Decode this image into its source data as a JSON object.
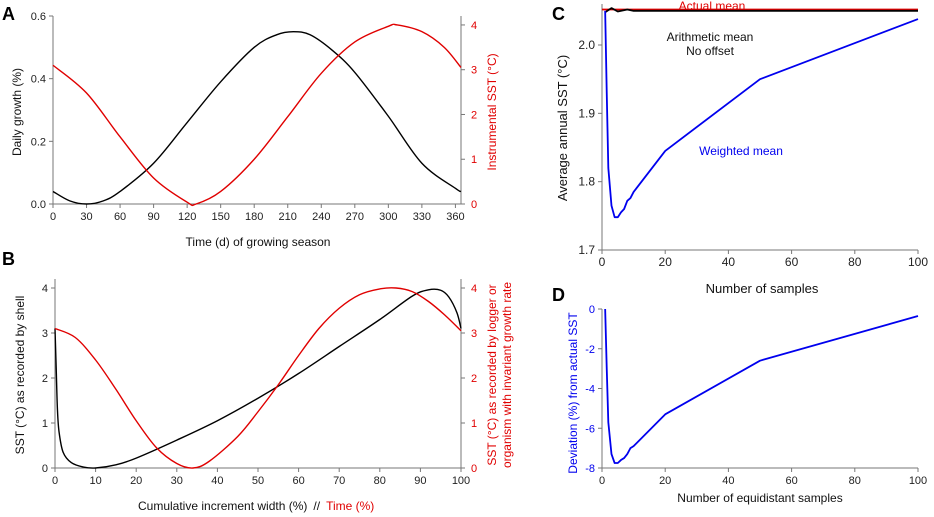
{
  "chart_data": [
    {
      "panel": "A",
      "type": "line",
      "xlabel": "Time (d) of growing season",
      "ylabel_left": "Daily growth (%)",
      "ylabel_right": "Instrumental SST (°C)",
      "xticks": [
        "0",
        "30",
        "60",
        "90",
        "120",
        "150",
        "180",
        "210",
        "240",
        "270",
        "300",
        "330",
        "360"
      ],
      "yticks_left": [
        "0.0",
        "0.2",
        "0.4",
        "0.6"
      ],
      "yticks_right": [
        "0",
        "1",
        "2",
        "3",
        "4"
      ],
      "xlim": [
        0,
        365
      ],
      "ylim_left": [
        0,
        0.6
      ],
      "ylim_right": [
        0,
        4.2
      ],
      "series": [
        {
          "name": "Daily growth",
          "axis": "left",
          "color": "#000000",
          "x": [
            0,
            15,
            30,
            45,
            60,
            90,
            120,
            150,
            180,
            200,
            215,
            230,
            250,
            270,
            300,
            330,
            360,
            365
          ],
          "values": [
            0.04,
            0.01,
            0.0,
            0.01,
            0.04,
            0.13,
            0.26,
            0.39,
            0.5,
            0.54,
            0.55,
            0.54,
            0.49,
            0.42,
            0.28,
            0.13,
            0.05,
            0.04
          ]
        },
        {
          "name": "Instrumental SST",
          "axis": "right",
          "color": "#e00000",
          "x": [
            0,
            30,
            60,
            90,
            120,
            128,
            150,
            180,
            210,
            240,
            270,
            300,
            308,
            330,
            350,
            365
          ],
          "values": [
            3.1,
            2.48,
            1.5,
            0.58,
            0.04,
            0.0,
            0.28,
            1.0,
            1.95,
            2.92,
            3.62,
            3.97,
            4.0,
            3.85,
            3.5,
            3.05
          ]
        }
      ]
    },
    {
      "panel": "B",
      "type": "line",
      "xlabel": "Cumulative increment width (%)",
      "xlabel_sep": "//",
      "xlabel_red": "Time (%)",
      "ylabel_left": "SST (°C) as recorded by shell",
      "ylabel_right_line1": "SST (°C) as recorded by logger or",
      "ylabel_right_line2": "organism with invariant growth rate",
      "xticks": [
        "0",
        "10",
        "20",
        "30",
        "40",
        "50",
        "60",
        "70",
        "80",
        "90",
        "100"
      ],
      "yticks_left": [
        "0",
        "1",
        "2",
        "3",
        "4"
      ],
      "yticks_right": [
        "0",
        "1",
        "2",
        "3",
        "4"
      ],
      "xlim": [
        0,
        100
      ],
      "ylim": [
        0,
        4.2
      ],
      "series": [
        {
          "name": "SST recorded by shell",
          "axis": "left",
          "color": "#000000",
          "x": [
            0,
            0.3,
            0.6,
            1,
            2,
            4,
            7,
            10,
            15,
            20,
            30,
            40,
            50,
            60,
            70,
            80,
            88,
            92,
            95,
            97,
            99,
            100
          ],
          "values": [
            3.1,
            2.2,
            1.3,
            0.8,
            0.35,
            0.12,
            0.02,
            0.0,
            0.07,
            0.22,
            0.62,
            1.05,
            1.55,
            2.1,
            2.7,
            3.3,
            3.82,
            3.96,
            3.95,
            3.8,
            3.45,
            3.1
          ]
        },
        {
          "name": "SST recorded by logger",
          "axis": "right",
          "color": "#e00000",
          "x": [
            0,
            5,
            10,
            15,
            20,
            25,
            30,
            34,
            38,
            45,
            50,
            55,
            60,
            65,
            70,
            75,
            80,
            84,
            88,
            92,
            96,
            100
          ],
          "values": [
            3.1,
            2.9,
            2.4,
            1.75,
            1.05,
            0.45,
            0.1,
            0.0,
            0.15,
            0.7,
            1.25,
            1.85,
            2.5,
            3.1,
            3.55,
            3.85,
            3.98,
            4.0,
            3.92,
            3.7,
            3.4,
            3.05
          ]
        }
      ]
    },
    {
      "panel": "C",
      "type": "line",
      "xlabel": "Number of samples",
      "ylabel": "Average annual SST (°C)",
      "xticks": [
        "0",
        "20",
        "40",
        "60",
        "80",
        "100"
      ],
      "yticks": [
        "1.7",
        "1.8",
        "1.9",
        "2.0"
      ],
      "xlim": [
        0,
        100
      ],
      "ylim": [
        1.7,
        2.06
      ],
      "annotations": [
        "Actual mean",
        "Arithmetic mean",
        "No offset",
        "Weighted mean"
      ],
      "series": [
        {
          "name": "Actual mean",
          "color": "#e00000",
          "x": [
            0,
            100
          ],
          "values": [
            2.052,
            2.052
          ]
        },
        {
          "name": "Arithmetic mean",
          "color": "#000000",
          "x": [
            1,
            2,
            3,
            5,
            8,
            10,
            20,
            50,
            100
          ],
          "values": [
            2.048,
            2.051,
            2.054,
            2.049,
            2.052,
            2.05,
            2.05,
            2.05,
            2.05
          ]
        },
        {
          "name": "Weighted mean",
          "color": "#0000ee",
          "x": [
            1,
            1.5,
            2,
            3,
            4,
            5,
            6,
            7,
            8,
            9,
            10,
            20,
            50,
            100
          ],
          "values": [
            2.05,
            1.93,
            1.82,
            1.765,
            1.748,
            1.748,
            1.755,
            1.76,
            1.772,
            1.776,
            1.785,
            1.845,
            1.95,
            2.038
          ]
        }
      ]
    },
    {
      "panel": "D",
      "type": "line",
      "xlabel": "Number of equidistant samples",
      "ylabel": "Deviation (%) from actual SST",
      "xticks": [
        "0",
        "20",
        "40",
        "60",
        "80",
        "100"
      ],
      "yticks": [
        "-8",
        "-6",
        "-4",
        "-2",
        "0"
      ],
      "xlim": [
        0,
        100
      ],
      "ylim": [
        -8,
        0
      ],
      "series": [
        {
          "name": "Deviation",
          "color": "#0000ee",
          "x": [
            1,
            1.5,
            2,
            3,
            4,
            5,
            6,
            7,
            8,
            9,
            10,
            20,
            50,
            100
          ],
          "values": [
            0,
            -3.0,
            -5.7,
            -7.3,
            -7.75,
            -7.75,
            -7.6,
            -7.5,
            -7.3,
            -7.0,
            -6.9,
            -5.3,
            -2.6,
            -0.35
          ]
        }
      ]
    }
  ]
}
